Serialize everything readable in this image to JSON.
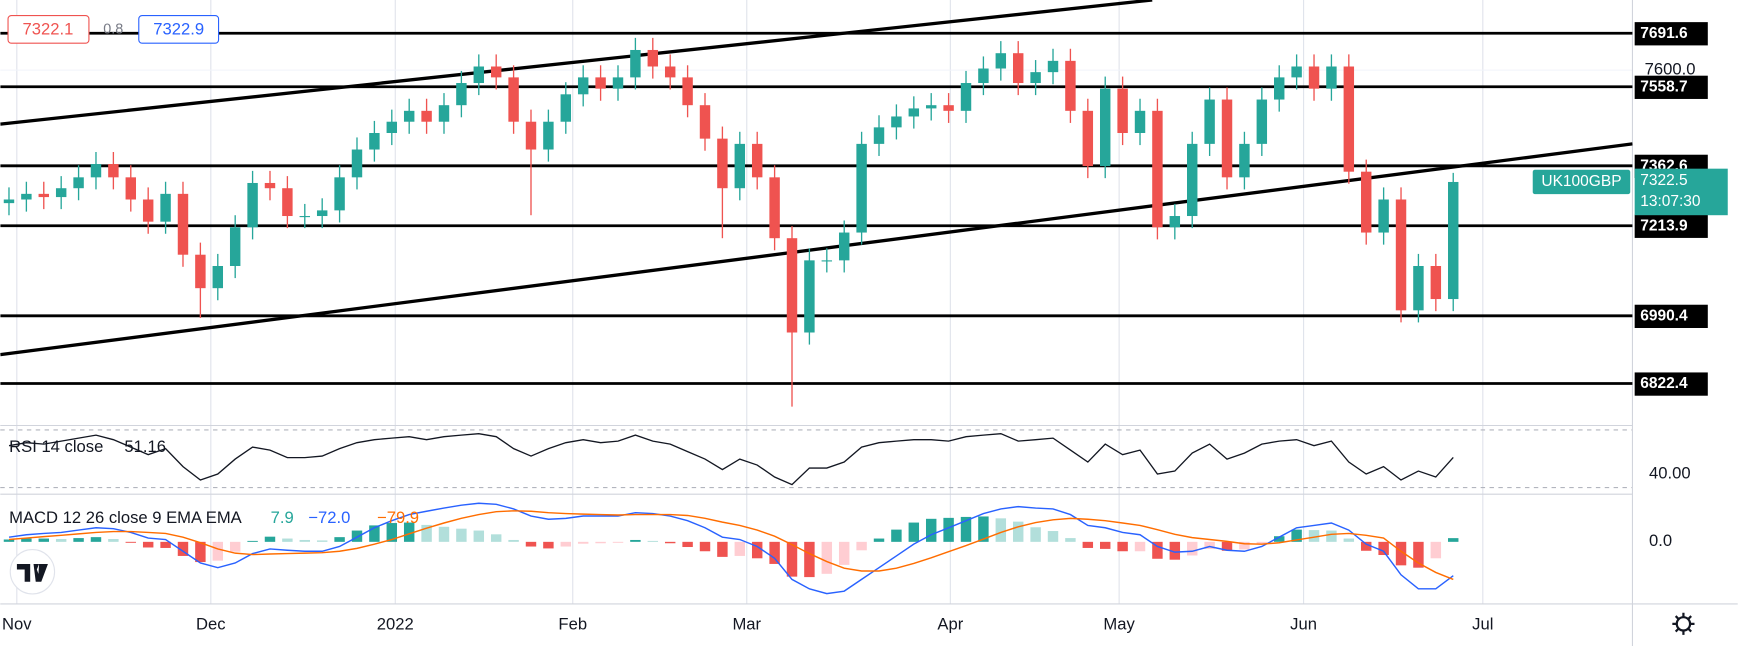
{
  "chart_data": {
    "type": "candlestick",
    "symbol": "UK100GBP",
    "bid": 7322.1,
    "spread": 0.8,
    "ask": 7322.9,
    "last_price": 7322.5,
    "countdown": "13:07:30",
    "xlim": [
      -0.5,
      93.3
    ],
    "xticks": [
      {
        "value": 0.45,
        "label": "Nov"
      },
      {
        "value": 11.6,
        "label": "Dec"
      },
      {
        "value": 22.2,
        "label": "2022"
      },
      {
        "value": 32.4,
        "label": "Feb"
      },
      {
        "value": 42.4,
        "label": "Mar"
      },
      {
        "value": 54.1,
        "label": "Apr"
      },
      {
        "value": 63.8,
        "label": "May"
      },
      {
        "value": 74.4,
        "label": "Jun"
      },
      {
        "value": 84.7,
        "label": "Jul"
      }
    ],
    "ylim": [
      6721,
      7774
    ],
    "yticks": [
      {
        "value": 7600,
        "label": "7600.0"
      }
    ],
    "up_color": "#26a69a",
    "down_color": "#ef5350",
    "open": [
      7270,
      7279,
      7293,
      7285,
      7307,
      7334,
      7367,
      7334,
      7279,
      7224,
      7293,
      7142,
      7059,
      7114,
      7210,
      7320,
      7307,
      7238,
      7238,
      7252,
      7334,
      7403,
      7444,
      7472,
      7499,
      7472,
      7513,
      7568,
      7609,
      7582,
      7472,
      7403,
      7472,
      7540,
      7582,
      7554,
      7582,
      7650,
      7609,
      7582,
      7513,
      7430,
      7307,
      7417,
      7334,
      7183,
      6949,
      7128,
      7128,
      7197,
      7417,
      7458,
      7485,
      7505,
      7513,
      7499,
      7568,
      7604,
      7642,
      7568,
      7595,
      7623,
      7499,
      7362,
      7554,
      7444,
      7499,
      7210,
      7238,
      7417,
      7527,
      7334,
      7417,
      7527,
      7582,
      7609,
      7554,
      7609,
      7348,
      7197,
      7279,
      7004,
      7114,
      7032
    ],
    "high": [
      7309,
      7323,
      7323,
      7337,
      7364,
      7397,
      7397,
      7364,
      7309,
      7323,
      7323,
      7172,
      7144,
      7240,
      7350,
      7350,
      7337,
      7268,
      7282,
      7364,
      7433,
      7474,
      7502,
      7529,
      7529,
      7543,
      7598,
      7639,
      7639,
      7612,
      7502,
      7502,
      7570,
      7612,
      7612,
      7612,
      7680,
      7680,
      7639,
      7612,
      7543,
      7460,
      7447,
      7447,
      7364,
      7213,
      7158,
      7158,
      7227,
      7447,
      7488,
      7515,
      7535,
      7543,
      7543,
      7598,
      7634,
      7672,
      7672,
      7625,
      7653,
      7653,
      7529,
      7584,
      7584,
      7529,
      7529,
      7268,
      7447,
      7557,
      7557,
      7447,
      7557,
      7612,
      7639,
      7639,
      7639,
      7639,
      7378,
      7309,
      7309,
      7144,
      7144,
      7345
    ],
    "low": [
      7240,
      7249,
      7255,
      7255,
      7277,
      7304,
      7304,
      7249,
      7194,
      7194,
      7112,
      6985,
      7029,
      7084,
      7180,
      7277,
      7208,
      7208,
      7208,
      7222,
      7304,
      7373,
      7414,
      7442,
      7442,
      7442,
      7483,
      7538,
      7552,
      7442,
      7240,
      7373,
      7442,
      7510,
      7524,
      7524,
      7552,
      7579,
      7552,
      7483,
      7400,
      7183,
      7277,
      7304,
      7153,
      6765,
      6919,
      7098,
      7098,
      7167,
      7387,
      7428,
      7455,
      7475,
      7469,
      7469,
      7538,
      7574,
      7538,
      7538,
      7565,
      7469,
      7332,
      7332,
      7414,
      7414,
      7180,
      7180,
      7208,
      7387,
      7304,
      7304,
      7387,
      7497,
      7552,
      7524,
      7524,
      7318,
      7167,
      7167,
      6974,
      6974,
      7002,
      7002
    ],
    "close": [
      7279,
      7293,
      7285,
      7307,
      7334,
      7367,
      7334,
      7279,
      7224,
      7293,
      7142,
      7059,
      7114,
      7210,
      7320,
      7307,
      7238,
      7238,
      7252,
      7334,
      7403,
      7444,
      7472,
      7499,
      7472,
      7513,
      7568,
      7609,
      7582,
      7472,
      7403,
      7472,
      7540,
      7582,
      7554,
      7582,
      7650,
      7609,
      7582,
      7513,
      7430,
      7307,
      7417,
      7334,
      7183,
      6949,
      7128,
      7128,
      7197,
      7417,
      7458,
      7485,
      7505,
      7513,
      7499,
      7568,
      7604,
      7642,
      7568,
      7595,
      7623,
      7499,
      7362,
      7554,
      7444,
      7499,
      7210,
      7238,
      7417,
      7527,
      7334,
      7417,
      7527,
      7582,
      7609,
      7554,
      7609,
      7348,
      7197,
      7279,
      7004,
      7114,
      7032,
      7322.5
    ],
    "levels": [
      7691.6,
      7558.7,
      7362.6,
      7213.9,
      6990.4,
      6822.4
    ],
    "trendlines": [
      {
        "x": [
          -0.5,
          65.7
        ],
        "y": [
          7466,
          7774
        ]
      },
      {
        "x": [
          -0.5,
          93.3
        ],
        "y": [
          6894,
          7417
        ]
      }
    ],
    "rsi": {
      "label": "RSI 14 close",
      "last": 51.16,
      "color": "#131722",
      "ylim": [
        28,
        71
      ],
      "yticks": [
        {
          "value": 40,
          "label": "40.00"
        }
      ],
      "values": [
        59,
        61,
        60,
        62,
        64,
        66,
        63,
        58,
        53,
        57,
        45,
        36,
        40,
        50,
        58,
        56,
        51,
        51,
        52,
        57,
        61,
        63,
        64,
        65,
        63,
        65,
        66,
        67,
        65,
        57,
        52,
        57,
        61,
        63,
        61,
        62,
        66,
        62,
        60,
        55,
        50,
        43,
        50,
        46,
        38,
        33,
        44,
        44,
        48,
        58,
        61,
        62,
        63,
        63,
        62,
        65,
        66,
        67,
        62,
        63,
        64,
        56,
        48,
        60,
        53,
        56,
        40,
        42,
        54,
        60,
        50,
        54,
        60,
        62,
        63,
        59,
        62,
        48,
        40,
        45,
        36,
        42,
        38,
        51.16
      ]
    },
    "macd": {
      "label": "MACD 12 26 close 9 EMA EMA",
      "header_values": [
        "7.9",
        "−72.0",
        "−79.9"
      ],
      "ylim": [
        -132,
        99
      ],
      "yticks": [
        {
          "value": 0,
          "label": "0.0"
        }
      ],
      "macd_color": "#2962ff",
      "signal_color": "#ff6d00",
      "hist_colors": [
        "#26a69a",
        "#b2dfdb",
        "#ef5350",
        "#ffcdd2"
      ],
      "macd": [
        10,
        15,
        18,
        20,
        25,
        30,
        28,
        20,
        8,
        5,
        -20,
        -45,
        -55,
        -45,
        -25,
        -15,
        -18,
        -20,
        -20,
        -10,
        10,
        30,
        45,
        58,
        65,
        72,
        78,
        82,
        80,
        70,
        55,
        48,
        50,
        55,
        55,
        55,
        62,
        60,
        55,
        45,
        30,
        10,
        5,
        -10,
        -35,
        -80,
        -100,
        -110,
        -105,
        -80,
        -55,
        -30,
        -5,
        15,
        30,
        45,
        60,
        70,
        75,
        72,
        70,
        58,
        35,
        30,
        20,
        15,
        -10,
        -22,
        -20,
        -10,
        -18,
        -20,
        -10,
        10,
        30,
        35,
        40,
        25,
        -5,
        -20,
        -70,
        -100,
        -100,
        -72
      ],
      "signal": [
        5,
        8,
        11,
        14,
        17,
        20,
        22,
        22,
        20,
        18,
        10,
        -2,
        -15,
        -24,
        -27,
        -26,
        -25,
        -24,
        -23,
        -20,
        -14,
        -5,
        5,
        17,
        29,
        40,
        50,
        58,
        64,
        66,
        65,
        62,
        60,
        59,
        58,
        57,
        58,
        58,
        58,
        56,
        50,
        42,
        35,
        25,
        12,
        -6,
        -25,
        -42,
        -56,
        -62,
        -62,
        -56,
        -46,
        -34,
        -21,
        -8,
        6,
        20,
        32,
        41,
        47,
        50,
        48,
        45,
        40,
        35,
        26,
        16,
        9,
        5,
        1,
        -4,
        -5,
        -2,
        4,
        10,
        16,
        18,
        14,
        8,
        -20,
        -45,
        -65,
        -79.9
      ],
      "histogram": [
        5,
        7,
        7,
        6,
        8,
        10,
        6,
        -2,
        -12,
        -13,
        -30,
        -43,
        -40,
        -21,
        2,
        11,
        7,
        4,
        3,
        10,
        24,
        35,
        40,
        41,
        36,
        32,
        28,
        24,
        16,
        4,
        -10,
        -14,
        -10,
        -4,
        -3,
        -2,
        4,
        2,
        -3,
        -11,
        -20,
        -32,
        -30,
        -35,
        -47,
        -74,
        -75,
        -68,
        -49,
        -18,
        7,
        26,
        41,
        49,
        51,
        53,
        54,
        50,
        43,
        31,
        23,
        8,
        -13,
        -15,
        -20,
        -20,
        -36,
        -38,
        -29,
        -15,
        -19,
        -16,
        -5,
        12,
        26,
        25,
        24,
        7,
        -19,
        -28,
        -50,
        -55,
        -35,
        7.9
      ]
    }
  }
}
